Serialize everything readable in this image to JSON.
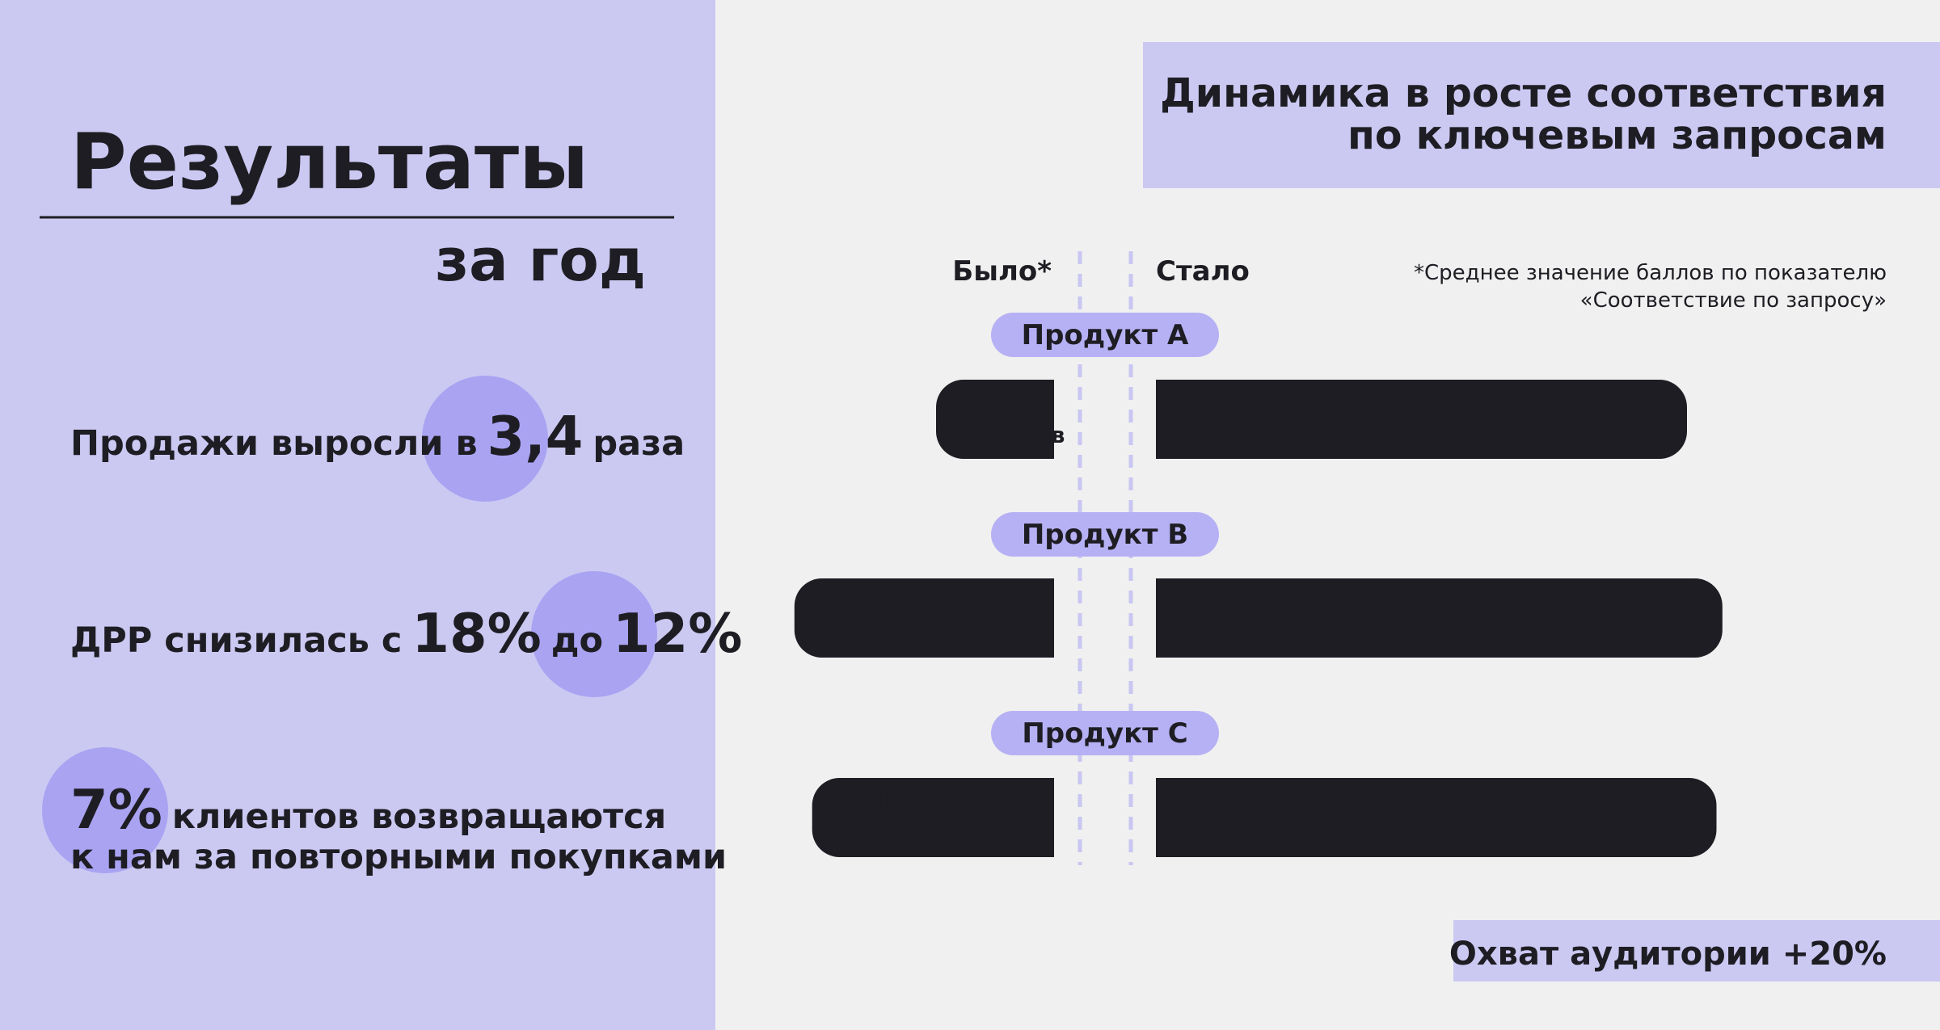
{
  "left": {
    "title": "Результаты",
    "subtitle": "за год",
    "stats": [
      [
        [
          {
            "text": "Продажи выросли в"
          },
          {
            "text": "3,4",
            "big": true
          },
          {
            "text": "раза"
          }
        ]
      ],
      [
        [
          {
            "text": "ДРР снизилась с"
          },
          {
            "text": "18%",
            "big": true
          },
          {
            "text": "до"
          },
          {
            "text": "12%",
            "big": true
          }
        ]
      ],
      [
        [
          {
            "text": "7%",
            "big": true
          },
          {
            "text": "клиентов возвращаются"
          }
        ],
        [
          {
            "text": "к нам за повторными покупками"
          }
        ]
      ]
    ]
  },
  "chart_data": {
    "type": "bar",
    "title": [
      "Динамика в росте соответствия",
      "по ключевым запросам"
    ],
    "note": [
      "*Среднее значение баллов по показателю",
      "«Соответствие по запросу»"
    ],
    "categories": [
      "Продукт A",
      "Продукт B",
      "Продукт C"
    ],
    "series": [
      {
        "name": "Было*",
        "color": "#1e1d23",
        "values": [
          20,
          44,
          41
        ]
      },
      {
        "name": "Стало",
        "color": "#1e1d23",
        "values": [
          90,
          96,
          95
        ]
      }
    ],
    "value_unit": "баллов",
    "category_color": "#b6b1f4"
  },
  "footer": "Охват аудитории +20%"
}
